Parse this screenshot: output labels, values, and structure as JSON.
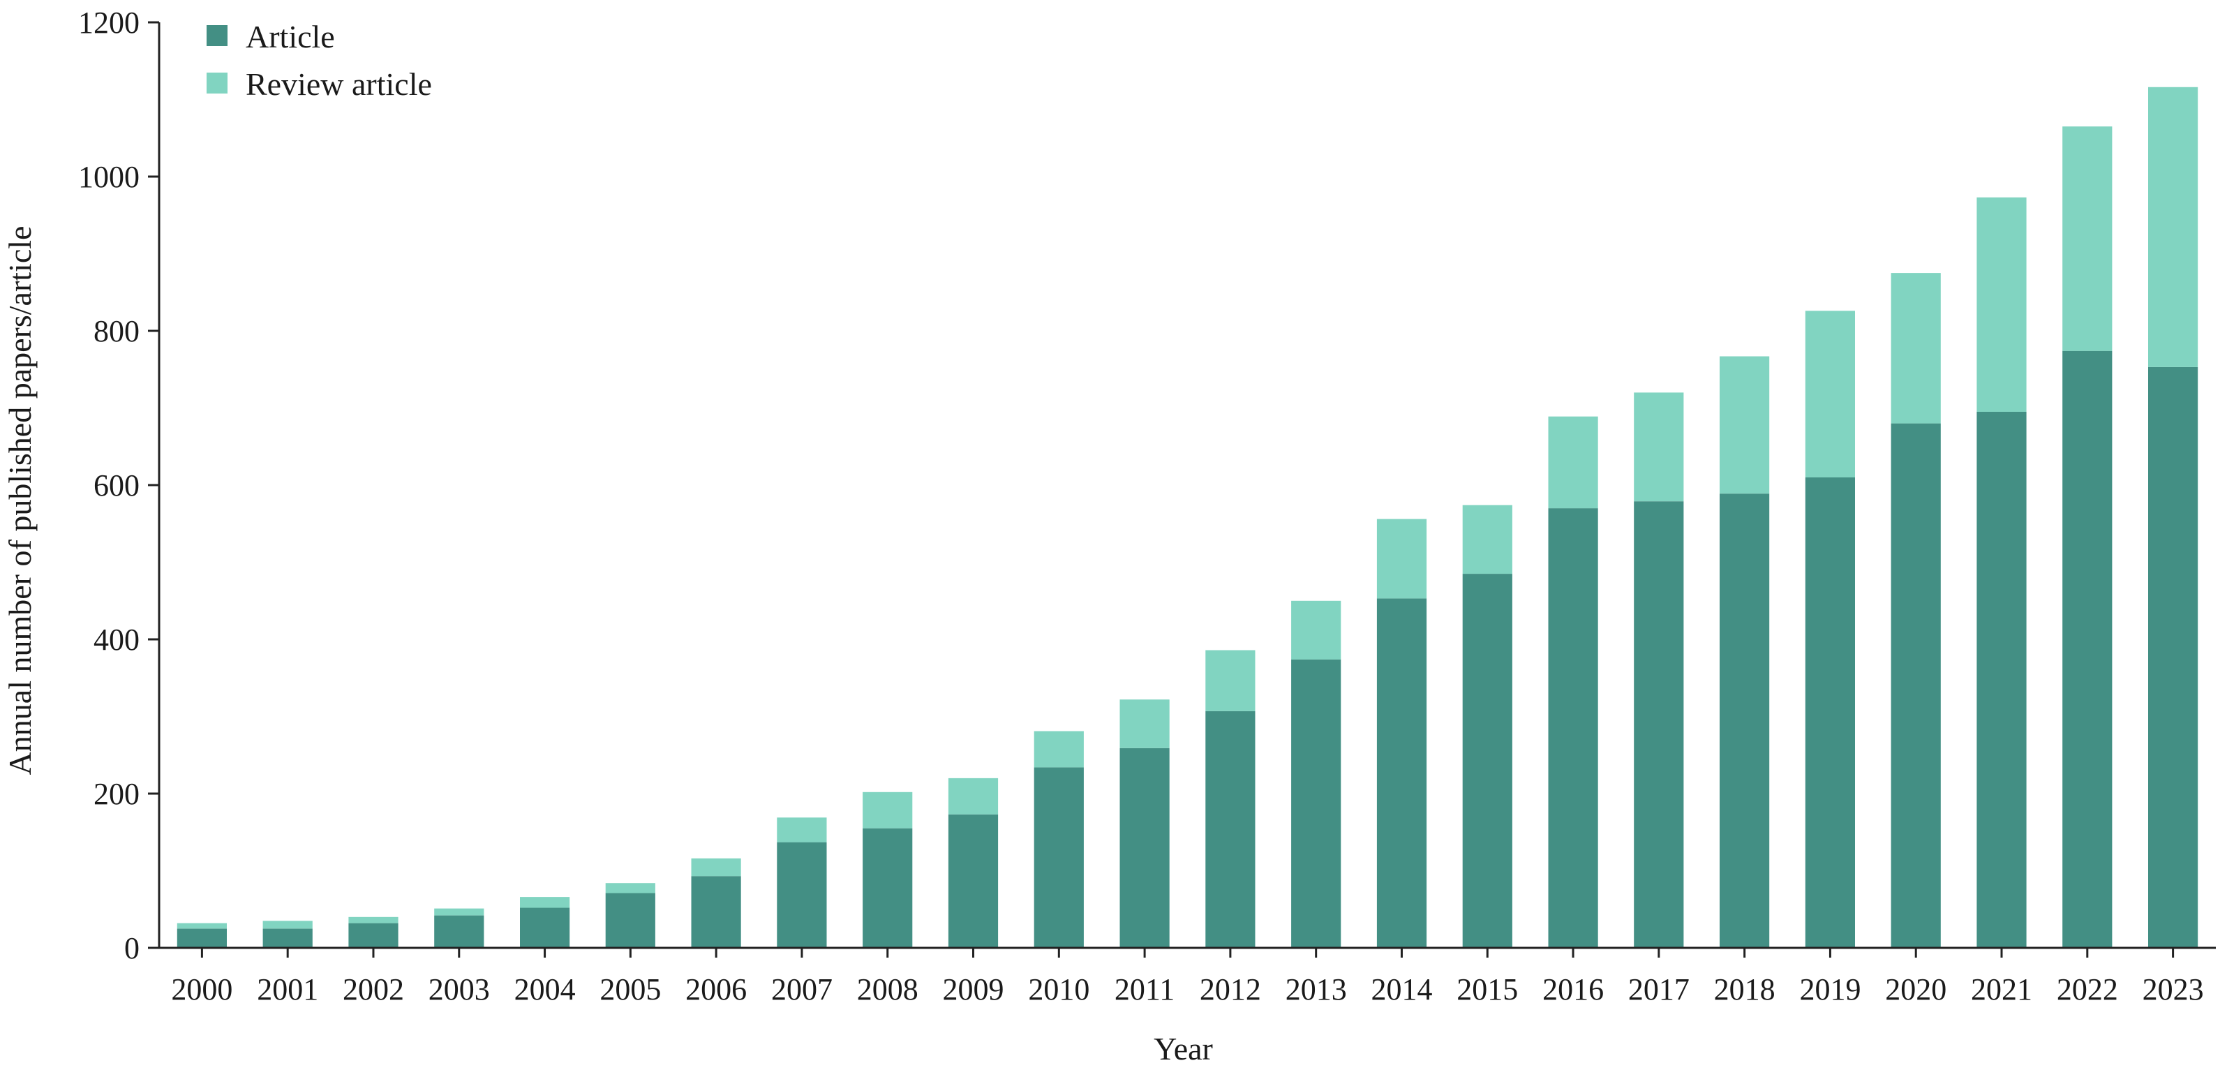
{
  "chart_data": {
    "type": "bar",
    "stacked": true,
    "title": "",
    "xlabel": "Year",
    "ylabel": "Annual number of published papers/article",
    "ylim": [
      0,
      1200
    ],
    "yticks": [
      0,
      200,
      400,
      600,
      800,
      1000,
      1200
    ],
    "categories": [
      "2000",
      "2001",
      "2002",
      "2003",
      "2004",
      "2005",
      "2006",
      "2007",
      "2008",
      "2009",
      "2010",
      "2011",
      "2012",
      "2013",
      "2014",
      "2015",
      "2016",
      "2017",
      "2018",
      "2019",
      "2020",
      "2021",
      "2022",
      "2023"
    ],
    "series": [
      {
        "name": "Article",
        "color": "#438f84",
        "values": [
          25,
          25,
          32,
          42,
          52,
          71,
          93,
          137,
          155,
          173,
          234,
          259,
          307,
          374,
          453,
          485,
          570,
          579,
          589,
          610,
          680,
          695,
          774,
          753
        ]
      },
      {
        "name": "Review article",
        "color": "#81d4c1",
        "values": [
          7,
          10,
          8,
          9,
          14,
          13,
          23,
          32,
          47,
          47,
          47,
          63,
          79,
          76,
          103,
          89,
          119,
          141,
          178,
          216,
          195,
          278,
          291,
          363
        ]
      }
    ],
    "legend_position": "top-left",
    "grid": false
  }
}
